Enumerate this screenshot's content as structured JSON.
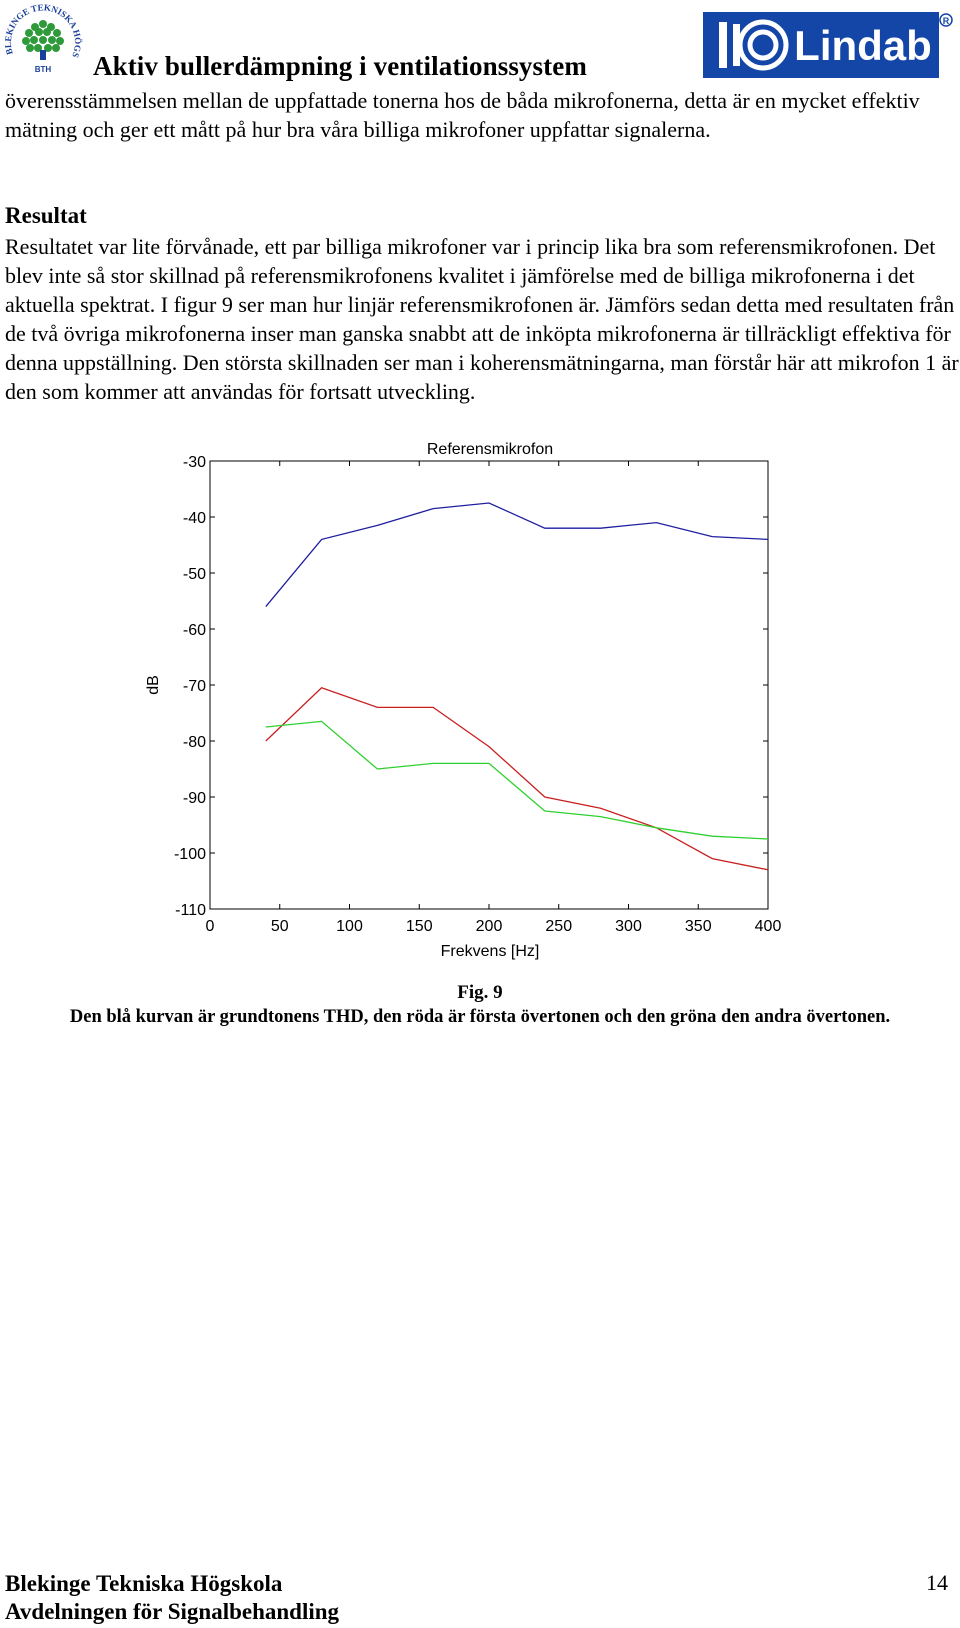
{
  "header": {
    "title": "Aktiv bullerdämpning i ventilationssystem",
    "university_logo_text": "BLEKINGE TEKNISKA HÖGSKOLA",
    "university_logo_abbr": "BTH",
    "company_logo_text": "Lindab",
    "colors": {
      "lindab_blue": "#1446a8",
      "bth_green": "#2e9a3a"
    }
  },
  "body": {
    "paragraph_1": "överensstämmelsen mellan de uppfattade tonerna hos de båda mikrofonerna, detta är en mycket effektiv mätning och ger ett mått på hur bra våra billiga mikrofoner uppfattar signalerna.",
    "heading": "Resultat",
    "paragraph_2": "Resultatet var lite förvånade, ett par billiga mikrofoner var i princip lika bra som referensmikrofonen. Det blev inte så stor skillnad på referensmikrofonens kvalitet i jämförelse med de billiga mikrofonerna i det aktuella spektrat. I figur 9 ser man hur linjär referensmikrofonen är. Jämförs sedan detta med resultaten från de två övriga mikrofonerna inser man ganska snabbt att de inköpta mikrofonerna är tillräckligt effektiva för denna uppställning. Den största skillnaden ser man i koherensmätningarna, man förstår här att mikrofon 1 är den som kommer att användas för fortsatt utveckling."
  },
  "chart_data": {
    "type": "line",
    "title": "Referensmikrofon",
    "xlabel": "Frekvens [Hz]",
    "ylabel": "dB",
    "xlim": [
      0,
      400
    ],
    "ylim": [
      -110,
      -30
    ],
    "xticks": [
      0,
      50,
      100,
      150,
      200,
      250,
      300,
      350,
      400
    ],
    "yticks": [
      -30,
      -40,
      -50,
      -60,
      -70,
      -80,
      -90,
      -100,
      -110
    ],
    "grid": false,
    "legend": "none",
    "series": [
      {
        "color": "#1f1fa0",
        "x": [
          40,
          80,
          120,
          160,
          200,
          240,
          280,
          320,
          360,
          400
        ],
        "y": [
          -56,
          -44,
          -41.5,
          -38.5,
          -37.5,
          -42,
          -42,
          -41,
          -43.5,
          -44
        ]
      },
      {
        "color": "#c82020",
        "x": [
          40,
          80,
          120,
          160,
          200,
          240,
          280,
          320,
          360,
          400
        ],
        "y": [
          -80,
          -70.5,
          -74,
          -74,
          -81,
          -90,
          -92,
          -95.5,
          -101,
          -103
        ]
      },
      {
        "color": "#30d030",
        "x": [
          40,
          80,
          120,
          160,
          200,
          240,
          280,
          320,
          360,
          400
        ],
        "y": [
          -77.5,
          -76.5,
          -85,
          -84,
          -84,
          -92.5,
          -93.5,
          -95.5,
          -97,
          -97.5
        ]
      }
    ]
  },
  "caption": {
    "label": "Fig. 9",
    "text": "Den blå kurvan är grundtonens THD, den röda är första övertonen och den gröna den andra övertonen."
  },
  "footer": {
    "line1": "Blekinge Tekniska Högskola",
    "line2": "Avdelningen för Signalbehandling",
    "page_number": "14"
  }
}
